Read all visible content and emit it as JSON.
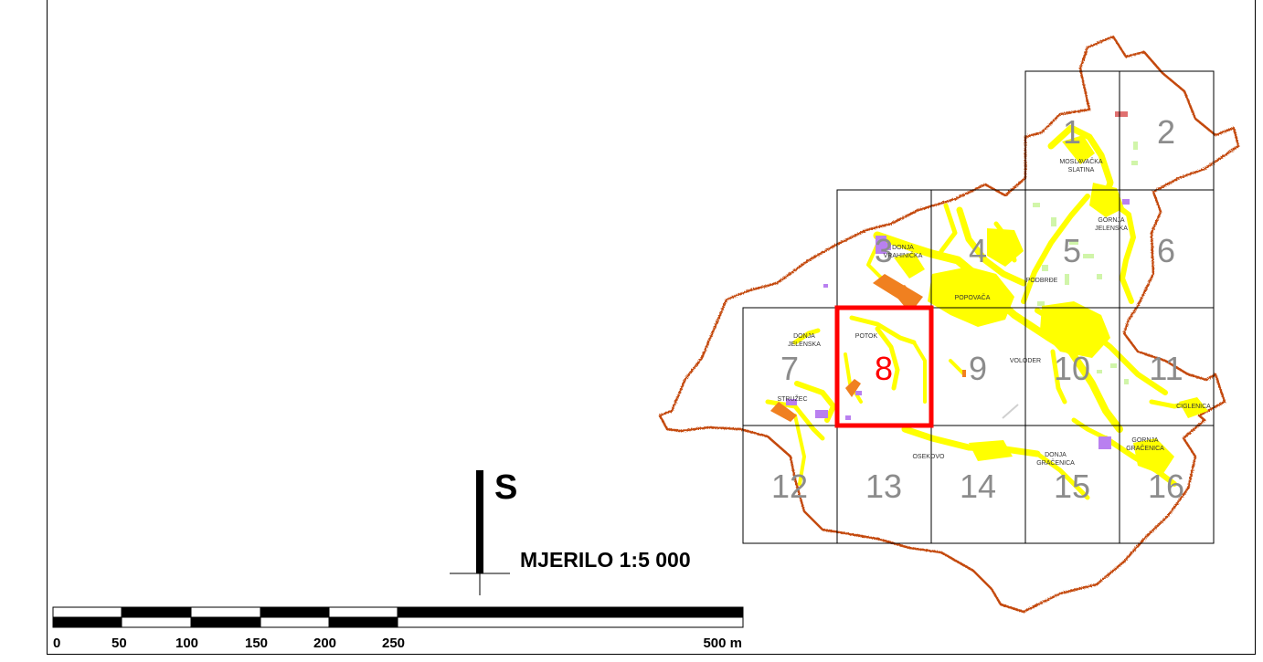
{
  "colors": {
    "boundary": "#c44a10",
    "settlement": "#ffff00",
    "grid": "#000000",
    "active_sheet": "#ff0000",
    "orange_area": "#f08020",
    "purple_area": "#b980f0",
    "green_area": "#ccf5a0",
    "sheet_number": "#8c8c8c"
  },
  "sheets": [
    {
      "number": "1"
    },
    {
      "number": "2"
    },
    {
      "number": "3"
    },
    {
      "number": "4"
    },
    {
      "number": "5"
    },
    {
      "number": "6"
    },
    {
      "number": "7"
    },
    {
      "number": "8",
      "active": true
    },
    {
      "number": "9"
    },
    {
      "number": "10"
    },
    {
      "number": "11"
    },
    {
      "number": "12"
    },
    {
      "number": "13"
    },
    {
      "number": "14"
    },
    {
      "number": "15"
    },
    {
      "number": "16"
    }
  ],
  "places": [
    {
      "lines": [
        "MOSLAVAČKA",
        "SLATINA"
      ]
    },
    {
      "lines": [
        "GORNJA",
        "JELENSKA"
      ]
    },
    {
      "lines": [
        "DONJA",
        "VRAHINIČKA"
      ]
    },
    {
      "lines": [
        "PODBRĐE"
      ]
    },
    {
      "lines": [
        "POPOVAČA"
      ]
    },
    {
      "lines": [
        "DONJA",
        "JELENSKA"
      ]
    },
    {
      "lines": [
        "POTOK"
      ]
    },
    {
      "lines": [
        "VOLODER"
      ]
    },
    {
      "lines": [
        "STRUŽEC"
      ]
    },
    {
      "lines": [
        "CIGLENICA"
      ]
    },
    {
      "lines": [
        "GORNJA",
        "GRAČENICA"
      ]
    },
    {
      "lines": [
        "OSEKOVO"
      ]
    },
    {
      "lines": [
        "DONJA",
        "GRAČENICA"
      ]
    }
  ],
  "north_arrow": {
    "letter": "S"
  },
  "scale": {
    "title": "MJERILO 1:5 000",
    "ticks": [
      "0",
      "50",
      "100",
      "150",
      "200",
      "250",
      "500 m"
    ]
  }
}
